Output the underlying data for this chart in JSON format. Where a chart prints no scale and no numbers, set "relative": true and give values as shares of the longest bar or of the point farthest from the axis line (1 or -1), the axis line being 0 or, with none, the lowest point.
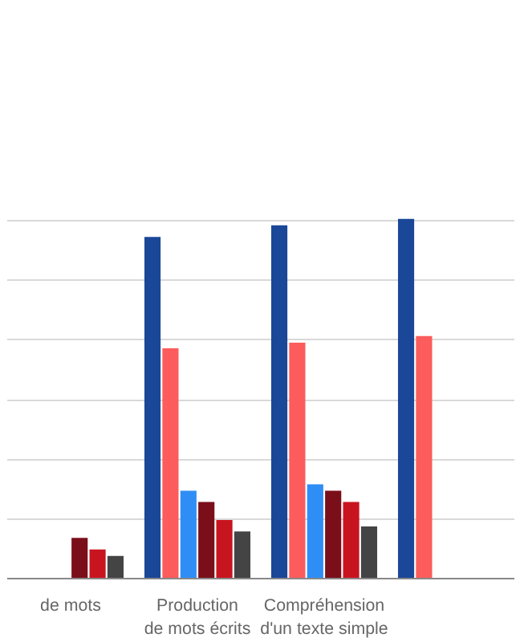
{
  "chart_data": {
    "type": "bar",
    "relative": true,
    "grid": "y",
    "categories": [
      "de mots",
      "Production\nde mots écrits",
      "Compréhension\nd'un texte simple",
      null
    ],
    "series": [
      {
        "color": "#1a4797",
        "values": [
          null,
          0.95,
          0.982,
          1
        ]
      },
      {
        "color": "#fc5c5c",
        "values": [
          null,
          0.64,
          0.656,
          0.674
        ]
      },
      {
        "color": "#2f8ef5",
        "values": [
          null,
          0.244,
          0.262,
          null
        ]
      },
      {
        "color": "#7a0f1a",
        "values": [
          0.113,
          0.213,
          0.244,
          null
        ]
      },
      {
        "color": "#c8141f",
        "values": [
          0.081,
          0.163,
          0.213,
          null
        ]
      },
      {
        "color": "#444444",
        "values": [
          0.063,
          0.131,
          0.145,
          null
        ]
      }
    ]
  }
}
